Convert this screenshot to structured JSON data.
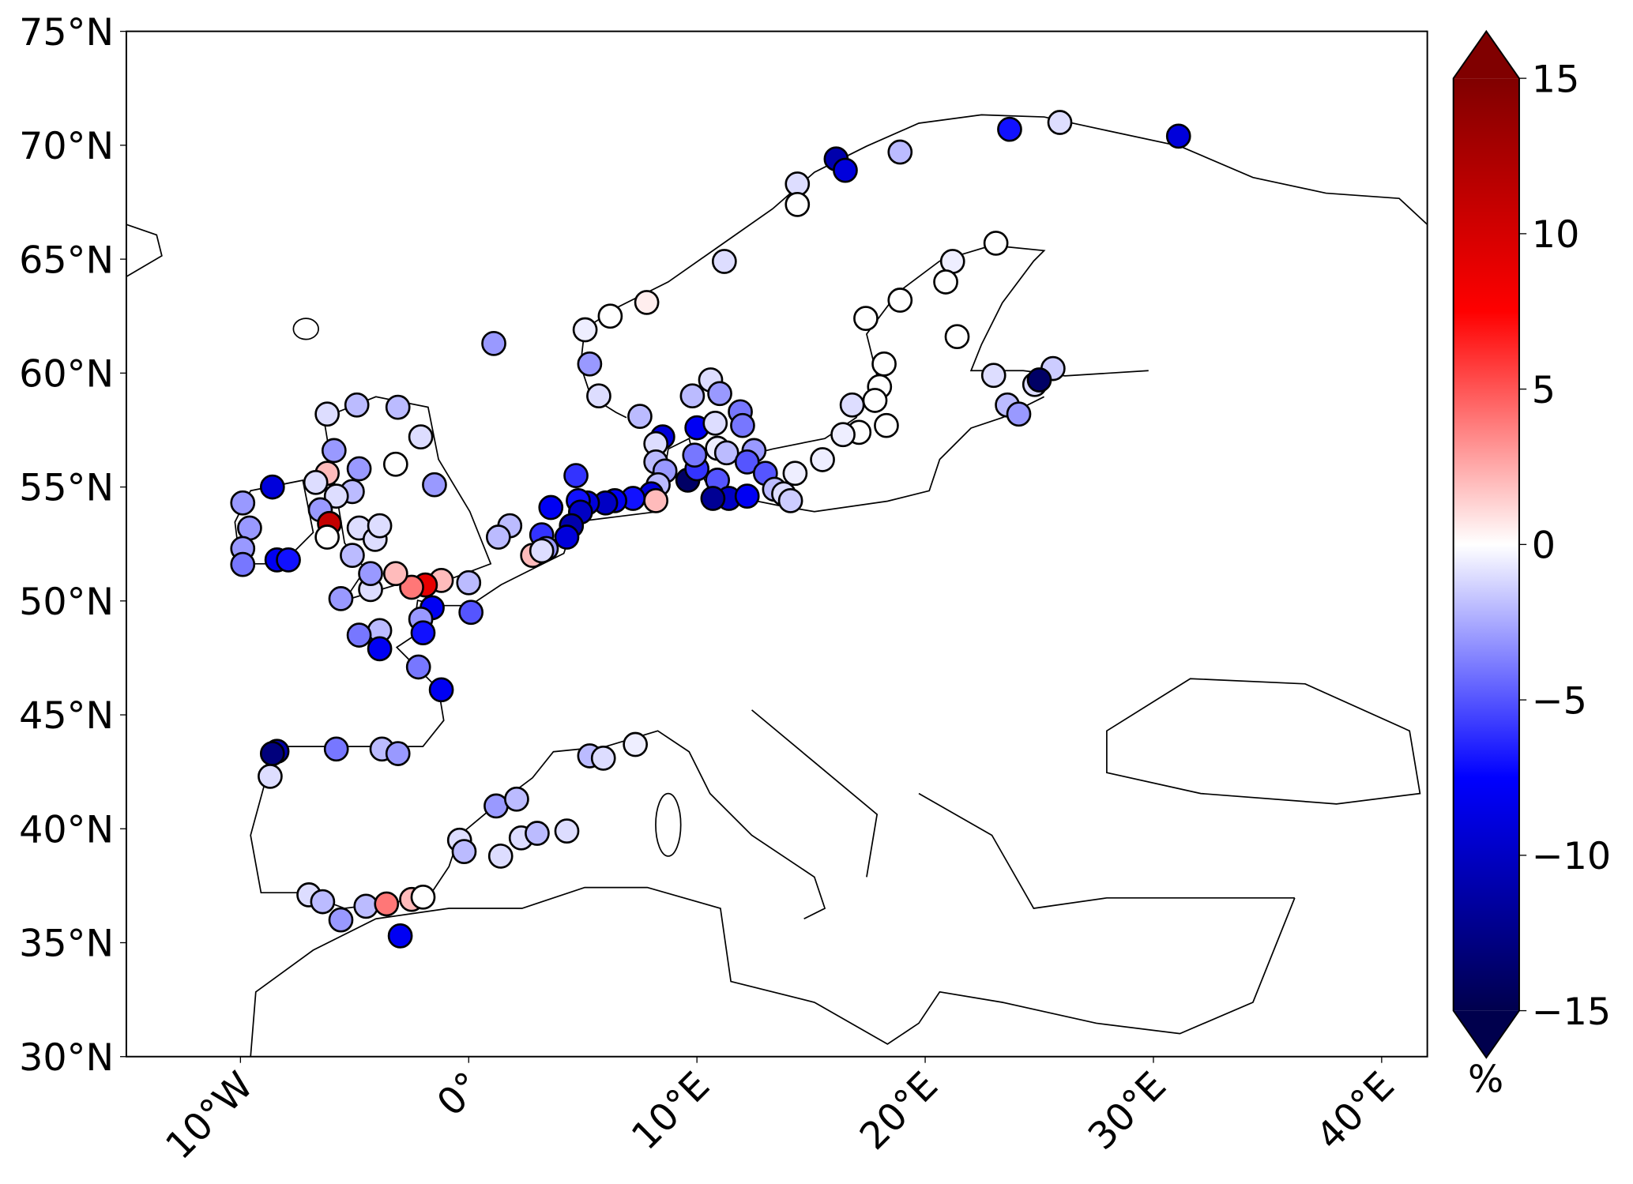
{
  "chart_data": {
    "type": "scatter",
    "colormap": "seismic",
    "extend": "both",
    "grid": false,
    "marker_edge_color": "#000000",
    "xlim": [
      -15,
      42
    ],
    "ylim": [
      30,
      75
    ],
    "xticks": [
      {
        "value": -10,
        "label": "10°W"
      },
      {
        "value": 0,
        "label": "0°"
      },
      {
        "value": 10,
        "label": "10°E"
      },
      {
        "value": 20,
        "label": "20°E"
      },
      {
        "value": 30,
        "label": "30°E"
      },
      {
        "value": 40,
        "label": "40°E"
      }
    ],
    "yticks": [
      {
        "value": 30,
        "label": "30°N"
      },
      {
        "value": 35,
        "label": "35°N"
      },
      {
        "value": 40,
        "label": "40°N"
      },
      {
        "value": 45,
        "label": "45°N"
      },
      {
        "value": 50,
        "label": "50°N"
      },
      {
        "value": 55,
        "label": "55°N"
      },
      {
        "value": 60,
        "label": "60°N"
      },
      {
        "value": 65,
        "label": "65°N"
      },
      {
        "value": 70,
        "label": "70°N"
      },
      {
        "value": 75,
        "label": "75°N"
      }
    ],
    "clim": [
      -15,
      15
    ],
    "cticks": [
      {
        "value": -15,
        "label": "−15"
      },
      {
        "value": -10,
        "label": "−10"
      },
      {
        "value": -5,
        "label": "−5"
      },
      0,
      5,
      10,
      15
    ],
    "colorbar_label": "%",
    "x": [
      18.9,
      23.7,
      25.9,
      31.1,
      16.1,
      16.5,
      14.4,
      14.4,
      11.2,
      7.8,
      6.2,
      5.1,
      5.3,
      5.7,
      7.5,
      1.1,
      23.1,
      21.2,
      20.9,
      18.9,
      21.4,
      17.4,
      18.2,
      18.0,
      17.8,
      16.8,
      18.3,
      17.1,
      16.4,
      15.5,
      14.3,
      23.0,
      23.6,
      24.1,
      24.8,
      25.6,
      25.0,
      10.6,
      9.8,
      11.0,
      11.9,
      10.0,
      8.5,
      10.8,
      12.0,
      8.2,
      8.2,
      8.6,
      8.3,
      9.6,
      10.0,
      9.9,
      10.9,
      11.3,
      12.5,
      12.2,
      10.9,
      11.4,
      12.2,
      10.7,
      13.0,
      13.4,
      13.8,
      14.1,
      8.0,
      8.2,
      7.2,
      6.4,
      6.0,
      5.2,
      4.8,
      4.9,
      4.5,
      4.3,
      3.6,
      4.7,
      3.2,
      3.4,
      2.8,
      3.2,
      1.8,
      1.3,
      0.1,
      0.0,
      -1.2,
      -1.9,
      -2.5,
      -3.2,
      -4.3,
      -5.6,
      -1.6,
      -2.1,
      -2.0,
      -3.9,
      -4.8,
      -3.9,
      -2.2,
      -1.2,
      -1.5,
      -2.1,
      -3.1,
      -3.2,
      -4.9,
      -6.2,
      -5.9,
      -4.8,
      -6.2,
      -6.7,
      -5.1,
      -5.8,
      -6.5,
      -6.1,
      -6.2,
      -5.1,
      -4.8,
      -4.1,
      -3.9,
      -4.3,
      -8.6,
      -9.9,
      -9.6,
      -9.9,
      -9.9,
      -8.4,
      -7.9,
      -8.4,
      -8.6,
      -8.7,
      -5.8,
      -3.8,
      -3.1,
      5.3,
      5.9,
      7.3,
      1.2,
      2.1,
      -0.4,
      -0.2,
      1.4,
      2.3,
      3.0,
      4.3,
      -7.0,
      -6.4,
      -5.6,
      -4.5,
      -3.6,
      -2.5,
      -2.0,
      -3.0
    ],
    "y": [
      69.7,
      70.7,
      71.0,
      70.4,
      69.4,
      68.9,
      68.3,
      67.4,
      64.9,
      63.1,
      62.5,
      61.9,
      60.4,
      59.0,
      58.1,
      61.3,
      65.7,
      64.9,
      64.0,
      63.2,
      61.6,
      62.4,
      60.4,
      59.4,
      58.8,
      58.6,
      57.7,
      57.4,
      57.3,
      56.2,
      55.6,
      59.9,
      58.6,
      58.2,
      59.5,
      60.2,
      59.7,
      59.7,
      59.0,
      59.1,
      58.3,
      57.6,
      57.2,
      57.8,
      57.7,
      56.9,
      56.1,
      55.7,
      55.1,
      55.3,
      55.8,
      56.4,
      56.7,
      56.5,
      56.6,
      56.1,
      55.3,
      54.5,
      54.6,
      54.5,
      55.6,
      54.9,
      54.7,
      54.4,
      54.7,
      54.4,
      54.5,
      54.4,
      54.3,
      54.3,
      54.4,
      53.9,
      53.3,
      52.8,
      54.1,
      55.5,
      52.9,
      52.3,
      52.0,
      52.2,
      53.3,
      52.8,
      49.5,
      50.8,
      50.9,
      50.7,
      50.6,
      51.2,
      50.5,
      50.1,
      49.7,
      49.2,
      48.6,
      48.7,
      48.5,
      47.9,
      47.1,
      46.1,
      55.1,
      57.2,
      58.5,
      56.0,
      58.6,
      58.2,
      56.6,
      55.8,
      55.6,
      55.2,
      54.8,
      54.6,
      54.0,
      53.4,
      52.8,
      52.0,
      53.2,
      52.7,
      53.3,
      51.2,
      55.0,
      54.3,
      53.2,
      52.3,
      51.6,
      51.8,
      51.8,
      43.4,
      43.3,
      42.3,
      43.5,
      43.5,
      43.3,
      43.2,
      43.1,
      43.7,
      41.0,
      41.3,
      39.5,
      39.0,
      38.8,
      39.6,
      39.8,
      39.9,
      37.1,
      36.8,
      36.0,
      36.6,
      36.7,
      36.9,
      37.0,
      35.3
    ],
    "values": [
      -2,
      -7,
      -1,
      -9,
      -11,
      -9,
      -1,
      0,
      -1,
      0.5,
      0,
      -0.5,
      -3,
      -1,
      -2,
      -3,
      0,
      -0.5,
      0,
      0,
      0,
      0,
      0,
      0,
      0,
      -1,
      0,
      0,
      -0.5,
      -0.5,
      -0.5,
      -1,
      -2,
      -3,
      -1,
      -1.5,
      -14,
      -1,
      -2,
      -3,
      -4,
      -8,
      -9,
      -1,
      -4,
      -1,
      -2,
      -3,
      -2,
      -14,
      -6,
      -4,
      -0.5,
      -2,
      -3,
      -5,
      -5,
      -10,
      -8,
      -12,
      -5,
      -2,
      -1,
      -1.5,
      -9,
      2,
      -7,
      -8,
      -10,
      -9,
      -7,
      -10,
      -11,
      -9,
      -8,
      -6,
      -6,
      -3,
      2,
      -1,
      -2,
      -2,
      -5,
      -2,
      2,
      9,
      4,
      2,
      -1,
      -3,
      -8,
      -3,
      -7,
      -2,
      -4,
      -8,
      -4,
      -8,
      -3,
      -1,
      -2,
      0,
      -2,
      -1,
      -3,
      -3,
      2,
      -1,
      -2,
      -1,
      -3,
      11,
      0,
      -2,
      -1,
      -1,
      -1,
      -3,
      -9,
      -3,
      -3,
      -3,
      -4,
      -8,
      -7,
      -11,
      -13,
      -1,
      -4,
      -2,
      -3,
      -2,
      -1,
      -0.5,
      -3,
      -2,
      -1,
      -2,
      -1,
      -1,
      -2,
      -1,
      -1,
      -2,
      -3,
      -2,
      4,
      2,
      0,
      -8
    ]
  }
}
